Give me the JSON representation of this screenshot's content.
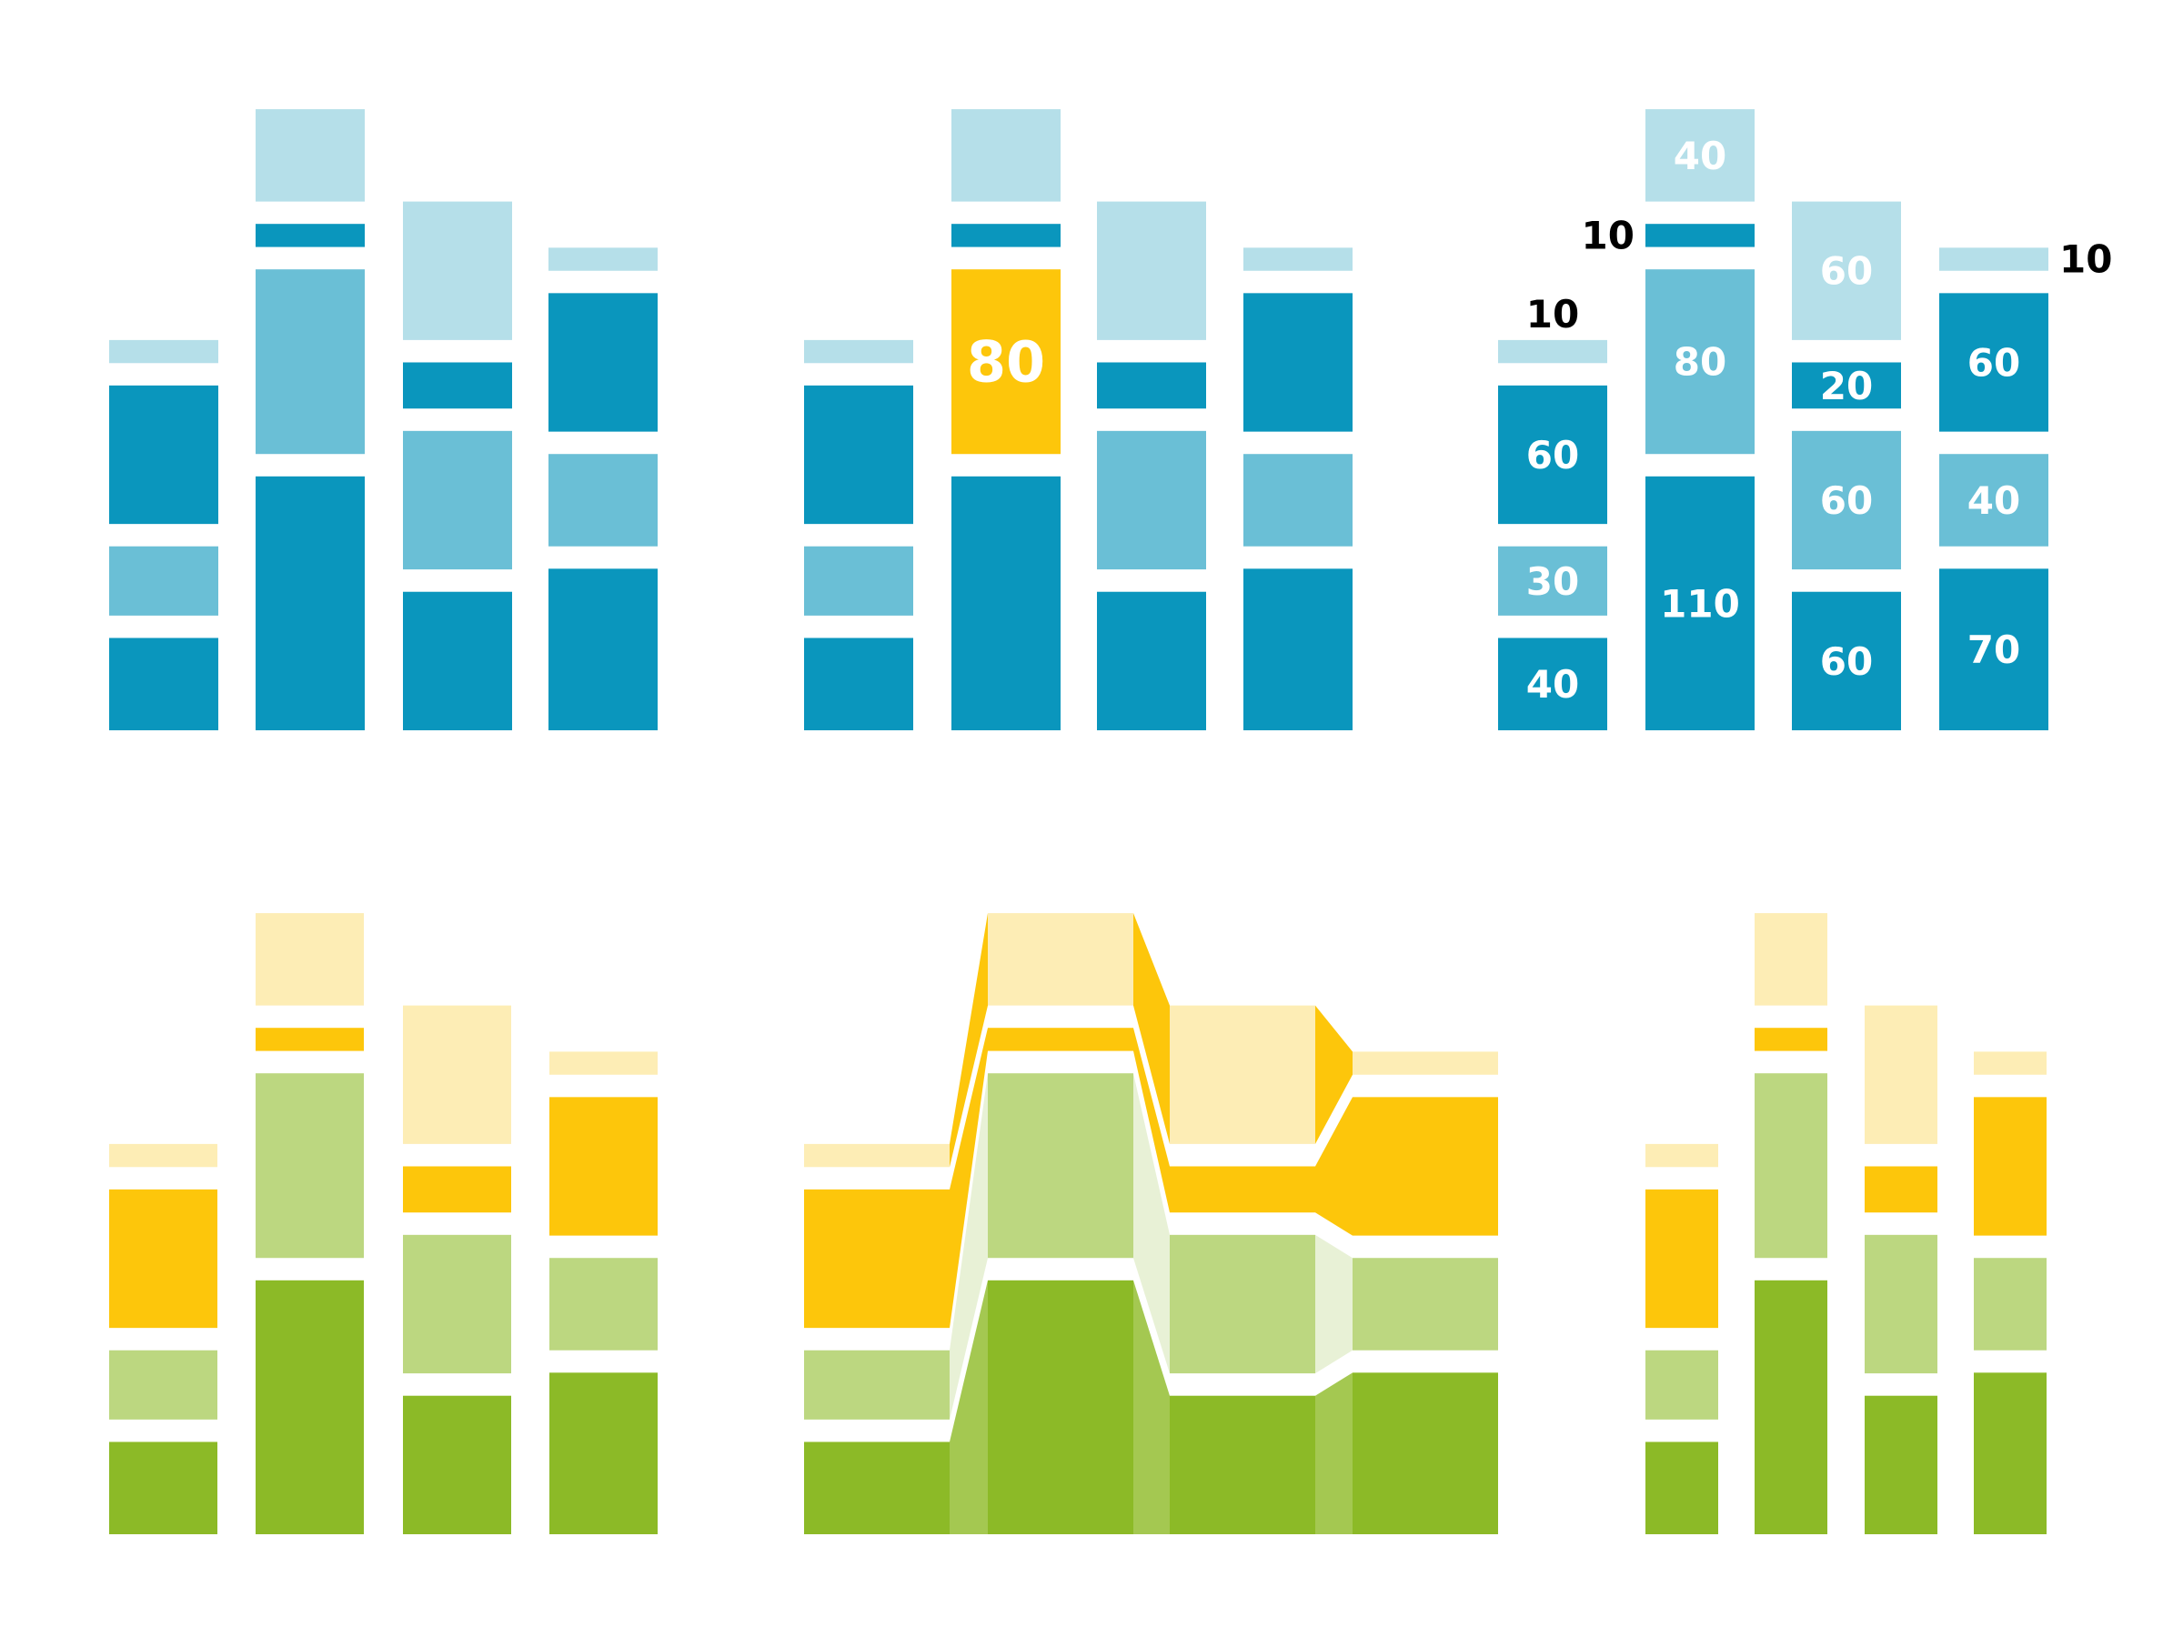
{
  "colors": {
    "blue_dark": "#0a96bd",
    "blue_mid": "#6abfd6",
    "blue_pale": "#b5dfe9",
    "green_dark": "#8cba27",
    "green_light": "#bcd780",
    "yellow": "#fdc60b",
    "yellow_pale": "#fdedb5",
    "connector_green_dark": "#a4c851",
    "connector_green_light": "#e8f1d6",
    "label_inside": "#ffffff",
    "label_outside": "#000000"
  },
  "chart_data": [
    {
      "type": "bar",
      "stacked": true,
      "variant": "plain",
      "palette": "blue",
      "stacks": [
        [
          40,
          30,
          60,
          10
        ],
        [
          110,
          80,
          10,
          40
        ],
        [
          60,
          60,
          20,
          60
        ],
        [
          70,
          40,
          60,
          10
        ]
      ]
    },
    {
      "type": "bar",
      "stacked": true,
      "variant": "highlight",
      "palette": "blue",
      "stacks": [
        [
          40,
          30,
          60,
          10
        ],
        [
          110,
          80,
          10,
          40
        ],
        [
          60,
          60,
          20,
          60
        ],
        [
          70,
          40,
          60,
          10
        ]
      ],
      "highlight": {
        "stack": 1,
        "segment": 1,
        "label": "80",
        "color": "#fdc60b"
      }
    },
    {
      "type": "bar",
      "stacked": true,
      "variant": "labeled",
      "palette": "blue",
      "stacks": [
        [
          40,
          30,
          60,
          10
        ],
        [
          110,
          80,
          10,
          40
        ],
        [
          60,
          60,
          20,
          60
        ],
        [
          70,
          40,
          60,
          10
        ]
      ],
      "labels": [
        [
          "40",
          "30",
          "60",
          "10"
        ],
        [
          "110",
          "80",
          "10",
          "40"
        ],
        [
          "60",
          "60",
          "20",
          "60"
        ],
        [
          "70",
          "40",
          "60",
          "10"
        ]
      ]
    },
    {
      "type": "bar",
      "stacked": true,
      "variant": "plain",
      "palette": "green",
      "stacks": [
        [
          40,
          30,
          60,
          10
        ],
        [
          110,
          80,
          10,
          40
        ],
        [
          60,
          60,
          20,
          60
        ],
        [
          70,
          40,
          60,
          10
        ]
      ]
    },
    {
      "type": "area",
      "stacked": true,
      "variant": "connected",
      "palette": "green",
      "stacks": [
        [
          40,
          30,
          60,
          10
        ],
        [
          110,
          80,
          10,
          40
        ],
        [
          60,
          60,
          20,
          60
        ],
        [
          70,
          40,
          60,
          10
        ]
      ]
    },
    {
      "type": "bar",
      "stacked": true,
      "variant": "narrow",
      "palette": "green",
      "stacks": [
        [
          40,
          30,
          60,
          10
        ],
        [
          110,
          80,
          10,
          40
        ],
        [
          60,
          60,
          20,
          60
        ],
        [
          70,
          40,
          60,
          10
        ]
      ]
    }
  ]
}
